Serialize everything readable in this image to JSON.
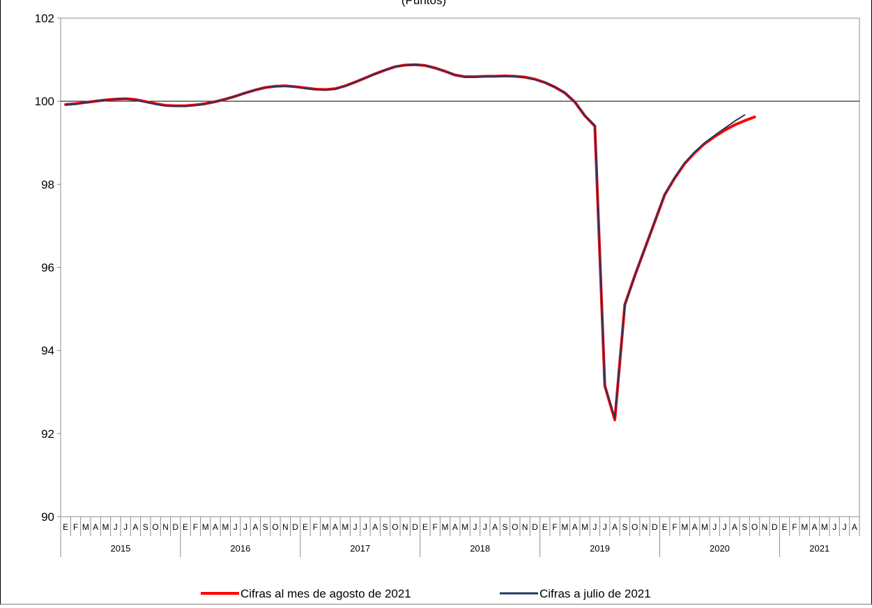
{
  "chart_data": {
    "type": "line",
    "title": "(Puntos)",
    "xlabel": "",
    "ylabel": "",
    "ylim": [
      90,
      102
    ],
    "yticks": [
      "90",
      "92",
      "94",
      "96",
      "98",
      "100",
      "102"
    ],
    "reference_line": 100,
    "grid": false,
    "legend_position": "bottom",
    "month_labels": [
      "E",
      "F",
      "M",
      "A",
      "M",
      "J",
      "J",
      "A",
      "S",
      "O",
      "N",
      "D",
      "E",
      "F",
      "M",
      "A",
      "M",
      "J",
      "J",
      "A",
      "S",
      "O",
      "N",
      "D",
      "E",
      "F",
      "M",
      "A",
      "M",
      "J",
      "J",
      "A",
      "S",
      "O",
      "N",
      "D",
      "E",
      "F",
      "M",
      "A",
      "M",
      "J",
      "J",
      "A",
      "S",
      "O",
      "N",
      "D",
      "E",
      "F",
      "M",
      "A",
      "M",
      "J",
      "J",
      "A",
      "S",
      "O",
      "N",
      "D",
      "E",
      "F",
      "M",
      "A",
      "M",
      "J",
      "J",
      "A",
      "S",
      "O",
      "N",
      "D",
      "E",
      "F",
      "M",
      "A",
      "M",
      "J",
      "J",
      "A"
    ],
    "years": [
      "2015",
      "2016",
      "2017",
      "2018",
      "2019",
      "2020",
      "2021"
    ],
    "series": [
      {
        "name": "Cifras al mes de agosto de 2021",
        "color": "#ff0000",
        "values": [
          99.92,
          99.94,
          99.97,
          100.0,
          100.03,
          100.05,
          100.06,
          100.04,
          99.99,
          99.94,
          99.9,
          99.89,
          99.89,
          99.91,
          99.94,
          99.99,
          100.05,
          100.12,
          100.2,
          100.27,
          100.33,
          100.36,
          100.37,
          100.35,
          100.32,
          100.29,
          100.28,
          100.3,
          100.37,
          100.46,
          100.56,
          100.66,
          100.75,
          100.83,
          100.87,
          100.88,
          100.86,
          100.8,
          100.72,
          100.63,
          100.59,
          100.59,
          100.6,
          100.6,
          100.61,
          100.6,
          100.58,
          100.53,
          100.45,
          100.34,
          100.2,
          99.98,
          99.65,
          99.4,
          93.15,
          92.33,
          95.1,
          95.8,
          96.45,
          97.1,
          97.75,
          98.15,
          98.5,
          98.76,
          98.98,
          99.15,
          99.3,
          99.43,
          99.53,
          99.62
        ]
      },
      {
        "name": "Cifras a julio de 2021",
        "color": "#1f3864",
        "values": [
          99.91,
          99.93,
          99.97,
          100.0,
          100.03,
          100.05,
          100.05,
          100.03,
          99.98,
          99.93,
          99.89,
          99.88,
          99.88,
          99.9,
          99.94,
          99.99,
          100.05,
          100.12,
          100.2,
          100.27,
          100.33,
          100.36,
          100.36,
          100.34,
          100.31,
          100.28,
          100.27,
          100.29,
          100.36,
          100.46,
          100.56,
          100.66,
          100.75,
          100.83,
          100.87,
          100.88,
          100.86,
          100.8,
          100.72,
          100.63,
          100.58,
          100.58,
          100.59,
          100.6,
          100.6,
          100.59,
          100.57,
          100.52,
          100.45,
          100.34,
          100.2,
          99.98,
          99.65,
          99.42,
          93.15,
          92.38,
          95.1,
          95.8,
          96.45,
          97.1,
          97.77,
          98.17,
          98.52,
          98.78,
          99.0,
          99.18,
          99.35,
          99.52,
          99.67
        ]
      }
    ]
  }
}
